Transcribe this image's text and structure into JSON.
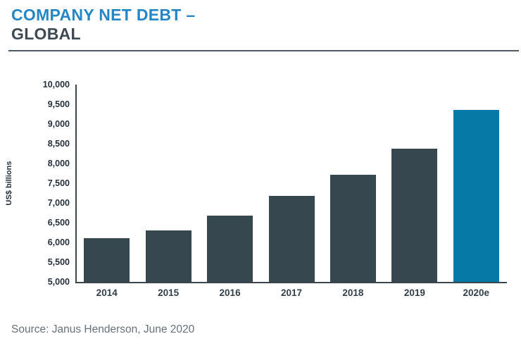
{
  "header": {
    "title_line1": "COMPANY NET DEBT –",
    "title_line2": "GLOBAL"
  },
  "source": "Source: Janus Henderson, June 2020",
  "colors": {
    "title_accent": "#2586C6",
    "title_secondary": "#3E4A52",
    "bar": "#37474F",
    "bar_highlight": "#0779A7",
    "axis": "#3A4750",
    "tick_text": "#25303B",
    "source_text": "#66707A"
  },
  "chart_data": {
    "type": "bar",
    "title": "Company Net Debt – Global",
    "categories": [
      "2014",
      "2015",
      "2016",
      "2017",
      "2018",
      "2019",
      "2020e"
    ],
    "values": [
      6100,
      6300,
      6670,
      7180,
      7720,
      8370,
      9360
    ],
    "highlight_category": "2020e",
    "xlabel": "",
    "ylabel": "US$ billions",
    "ylim": [
      5000,
      10000
    ],
    "ytick_step": 500,
    "ytick_labels": [
      "5,000",
      "5,500",
      "6,000",
      "6,500",
      "7,000",
      "7,500",
      "8,000",
      "8,500",
      "9,000",
      "9,500",
      "10,000"
    ],
    "grid": false,
    "legend": false
  }
}
